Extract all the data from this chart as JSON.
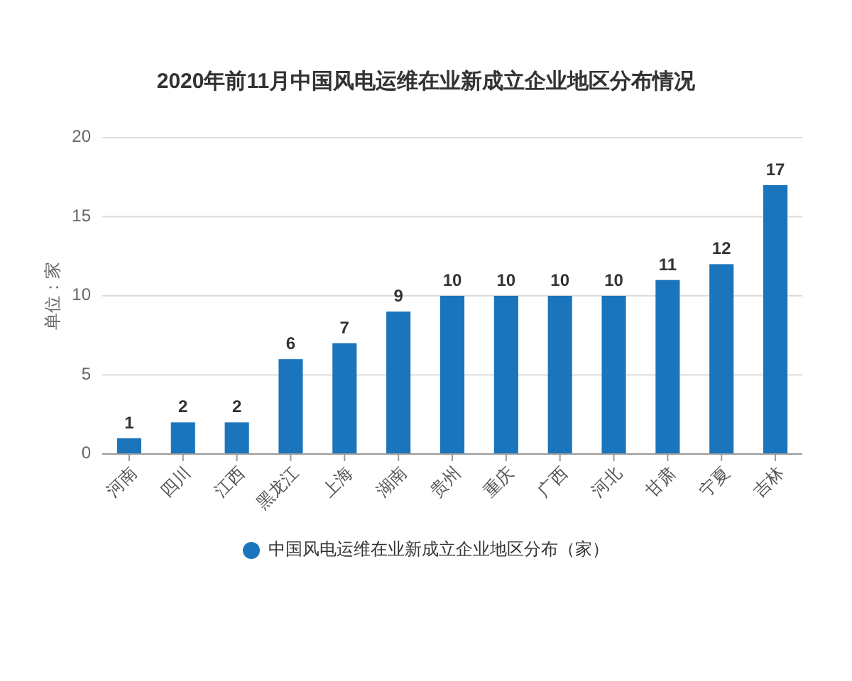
{
  "chart_data": {
    "type": "bar",
    "title": "2020年前11月中国风电运维在业新成立企业地区分布情况",
    "ylabel": "单位：家",
    "categories": [
      "河南",
      "四川",
      "江西",
      "黑龙江",
      "上海",
      "湖南",
      "贵州",
      "重庆",
      "广西",
      "河北",
      "甘肃",
      "宁夏",
      "吉林"
    ],
    "series": [
      {
        "name": "中国风电运维在业新成立企业地区分布（家）",
        "color": "#1b75bc",
        "values": [
          1,
          2,
          2,
          6,
          7,
          9,
          10,
          10,
          10,
          10,
          11,
          12,
          17
        ]
      }
    ],
    "ylim": [
      0,
      20
    ],
    "yticks": [
      0,
      5,
      10,
      15,
      20
    ],
    "grid": "y",
    "legend": "bottom",
    "data_labels": true
  }
}
